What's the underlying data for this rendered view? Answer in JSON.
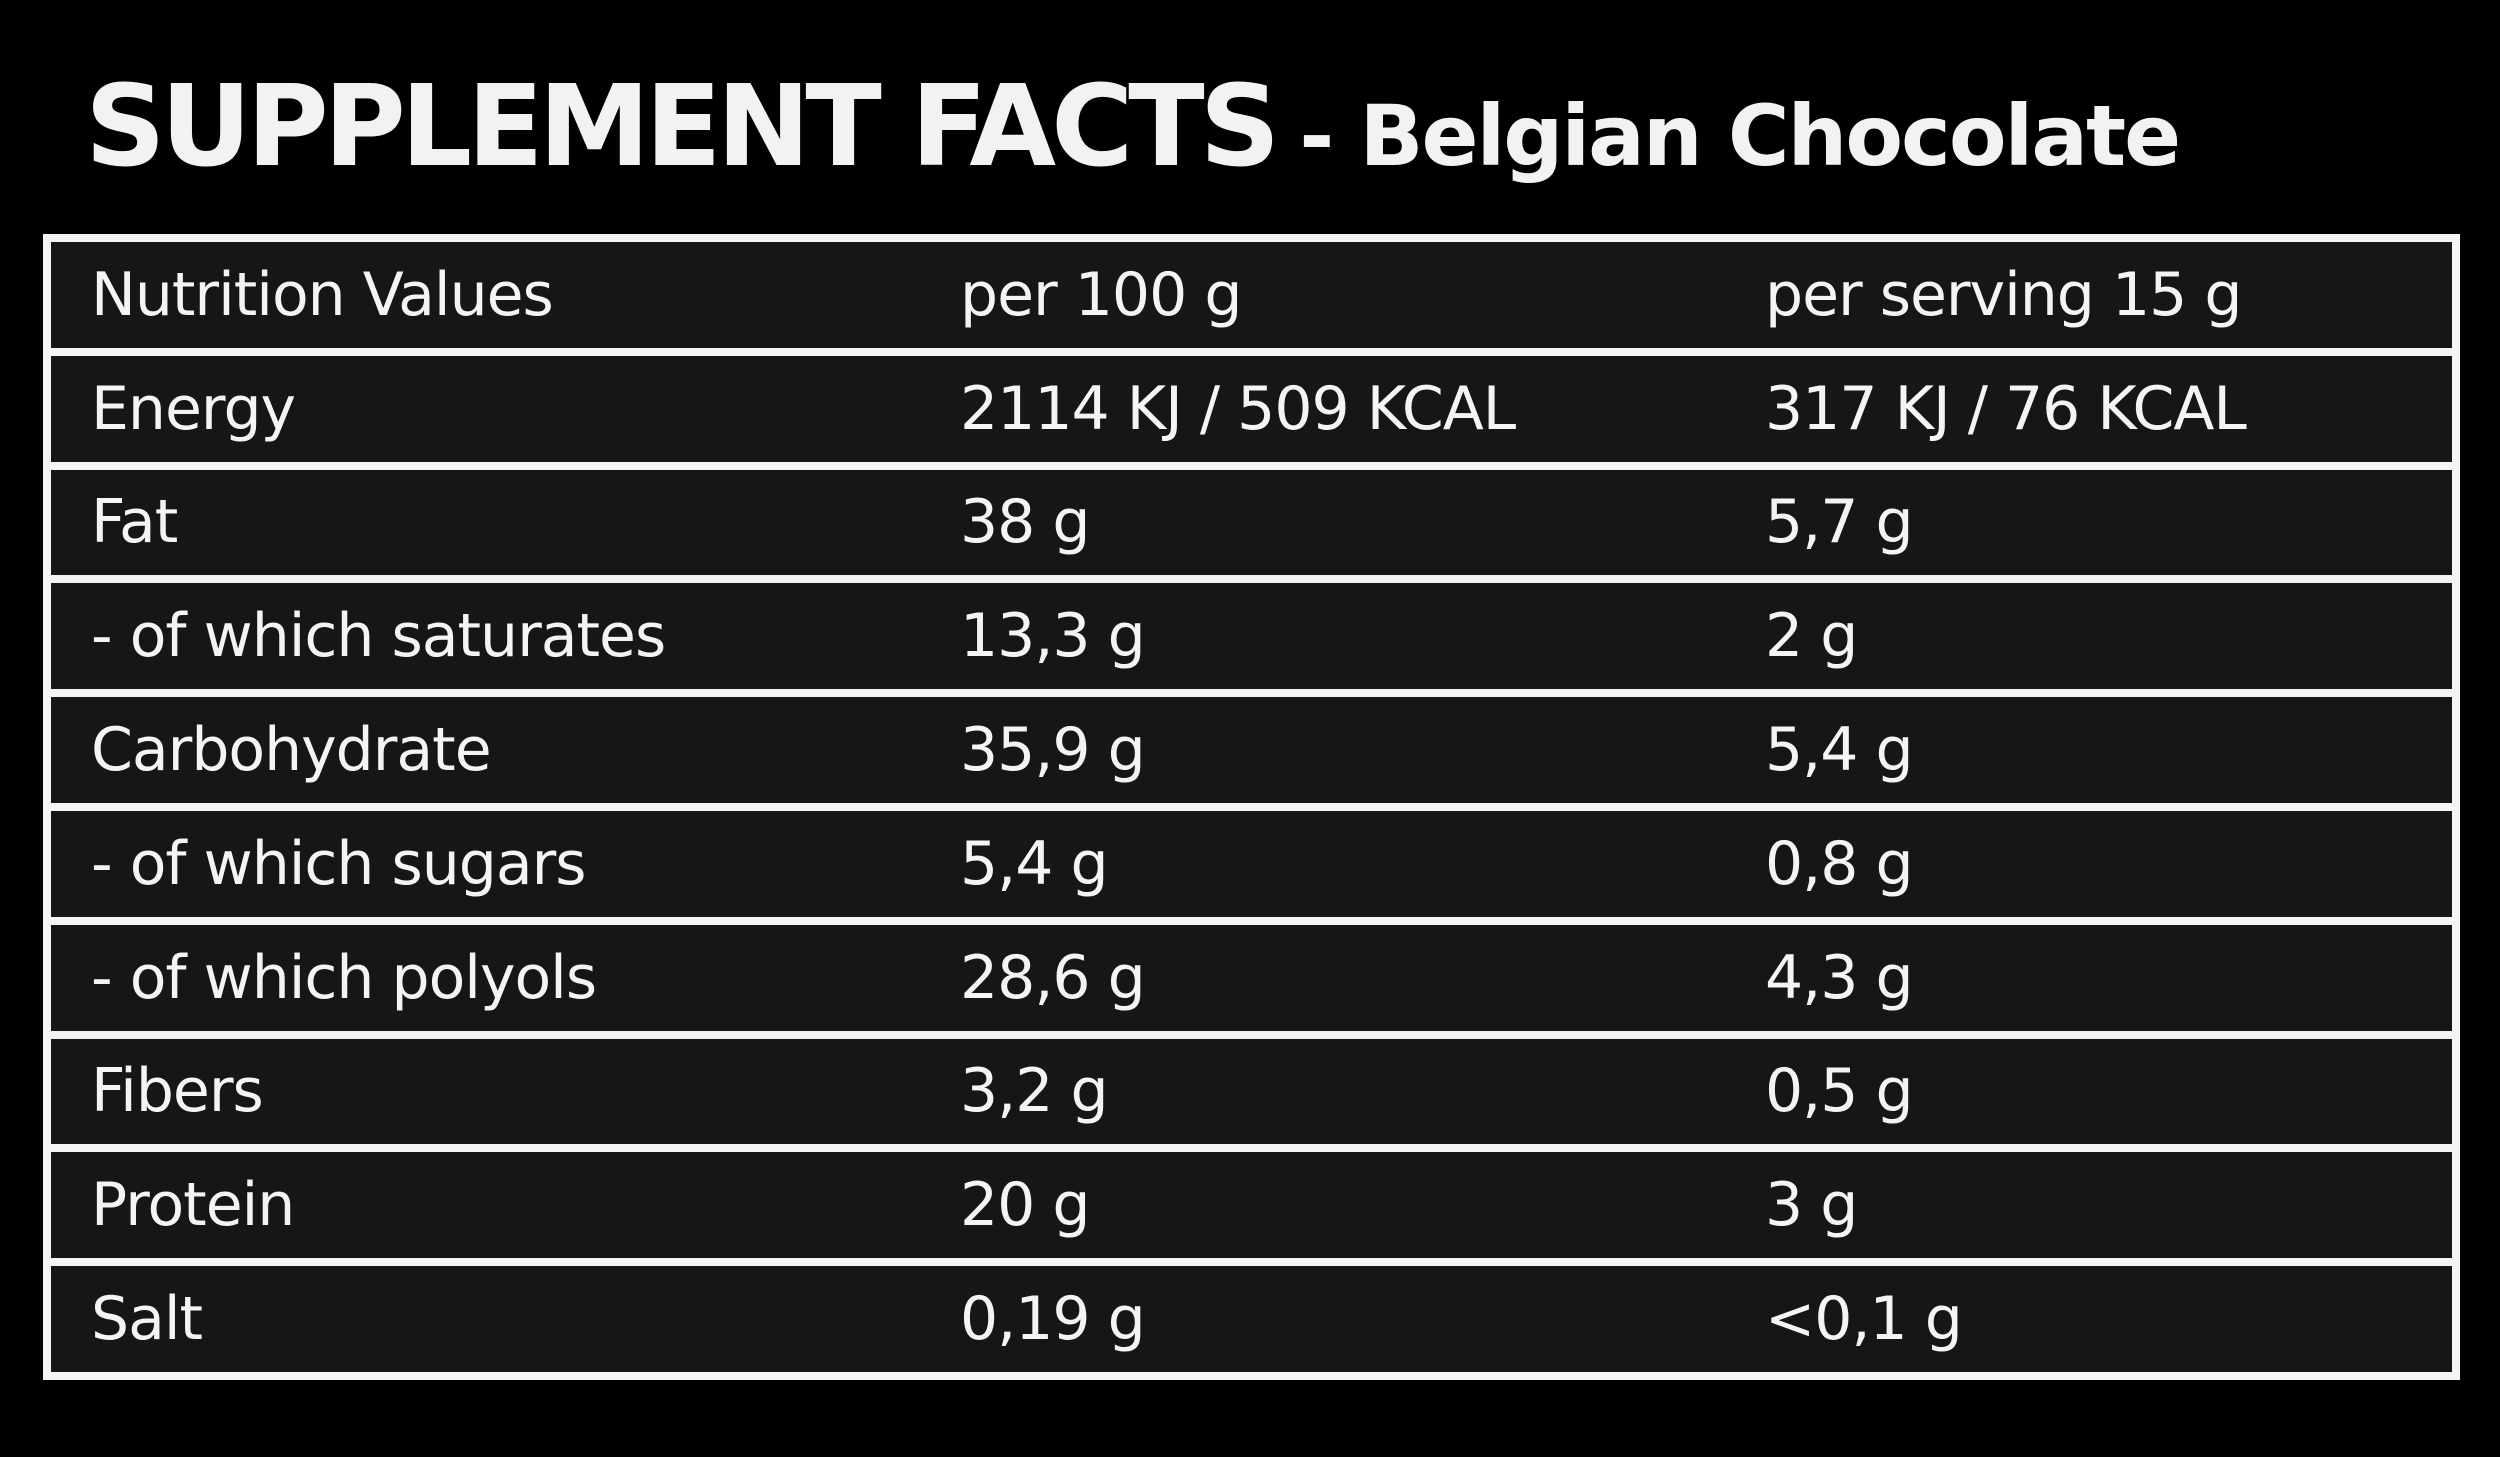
{
  "header": {
    "title": "SUPPLEMENT FACTS",
    "subtitle": "- Belgian Chocolate"
  },
  "table": {
    "columns": [
      "Nutrition Values",
      "per 100 g",
      "per serving 15 g"
    ],
    "rows": [
      [
        "Energy",
        "2114 KJ / 509 KCAL",
        "317 KJ / 76 KCAL"
      ],
      [
        "Fat",
        "38 g",
        "5,7 g"
      ],
      [
        "- of which saturates",
        "13,3 g",
        "2 g"
      ],
      [
        "Carbohydrate",
        "35,9 g",
        "5,4 g"
      ],
      [
        "- of which sugars",
        "5,4 g",
        "0,8 g"
      ],
      [
        "- of which polyols",
        "28,6 g",
        "4,3 g"
      ],
      [
        "Fibers",
        "3,2 g",
        "0,5 g"
      ],
      [
        "Protein",
        "20 g",
        "3 g"
      ],
      [
        "Salt",
        "0,19 g",
        "<0,1 g"
      ]
    ]
  }
}
